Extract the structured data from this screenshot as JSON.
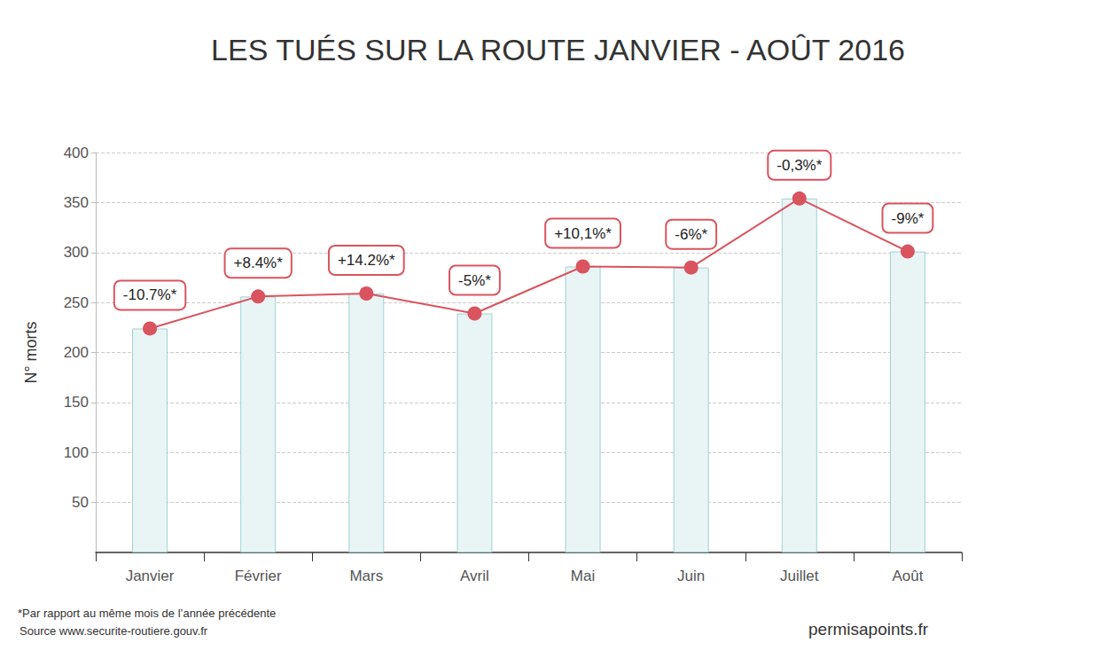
{
  "chart_data": {
    "type": "bar",
    "title": "LES TUÉS SUR LA ROUTE JANVIER - AOÛT 2016",
    "y_label": "N° morts",
    "categories": [
      "Janvier",
      "Février",
      "Mars",
      "Avril",
      "Mai",
      "Juin",
      "Juillet",
      "Août"
    ],
    "series": [
      {
        "type": "bar",
        "color": "#e9f4f5",
        "values": [
          224,
          256,
          259,
          239,
          286,
          285,
          354,
          301
        ]
      },
      {
        "type": "line",
        "color": "#d9545f",
        "marker": "circle",
        "values": [
          224,
          256,
          259,
          239,
          286,
          285,
          354,
          301
        ]
      }
    ],
    "annotations": [
      "-10.7%*",
      "+8.4%*",
      "+14.2%*",
      "-5%*",
      "+10,1%*",
      "-6%*",
      "-0,3%*",
      "-9%*"
    ],
    "ylim": [
      0,
      400
    ],
    "yticks": [
      50,
      100,
      150,
      200,
      250,
      300,
      350,
      400
    ],
    "grid": true,
    "footnote": "*Par rapport au même mois de l’année précédente",
    "source": "Source www.securite-routiere.gouv.fr",
    "credit": "permisapoints.fr"
  }
}
